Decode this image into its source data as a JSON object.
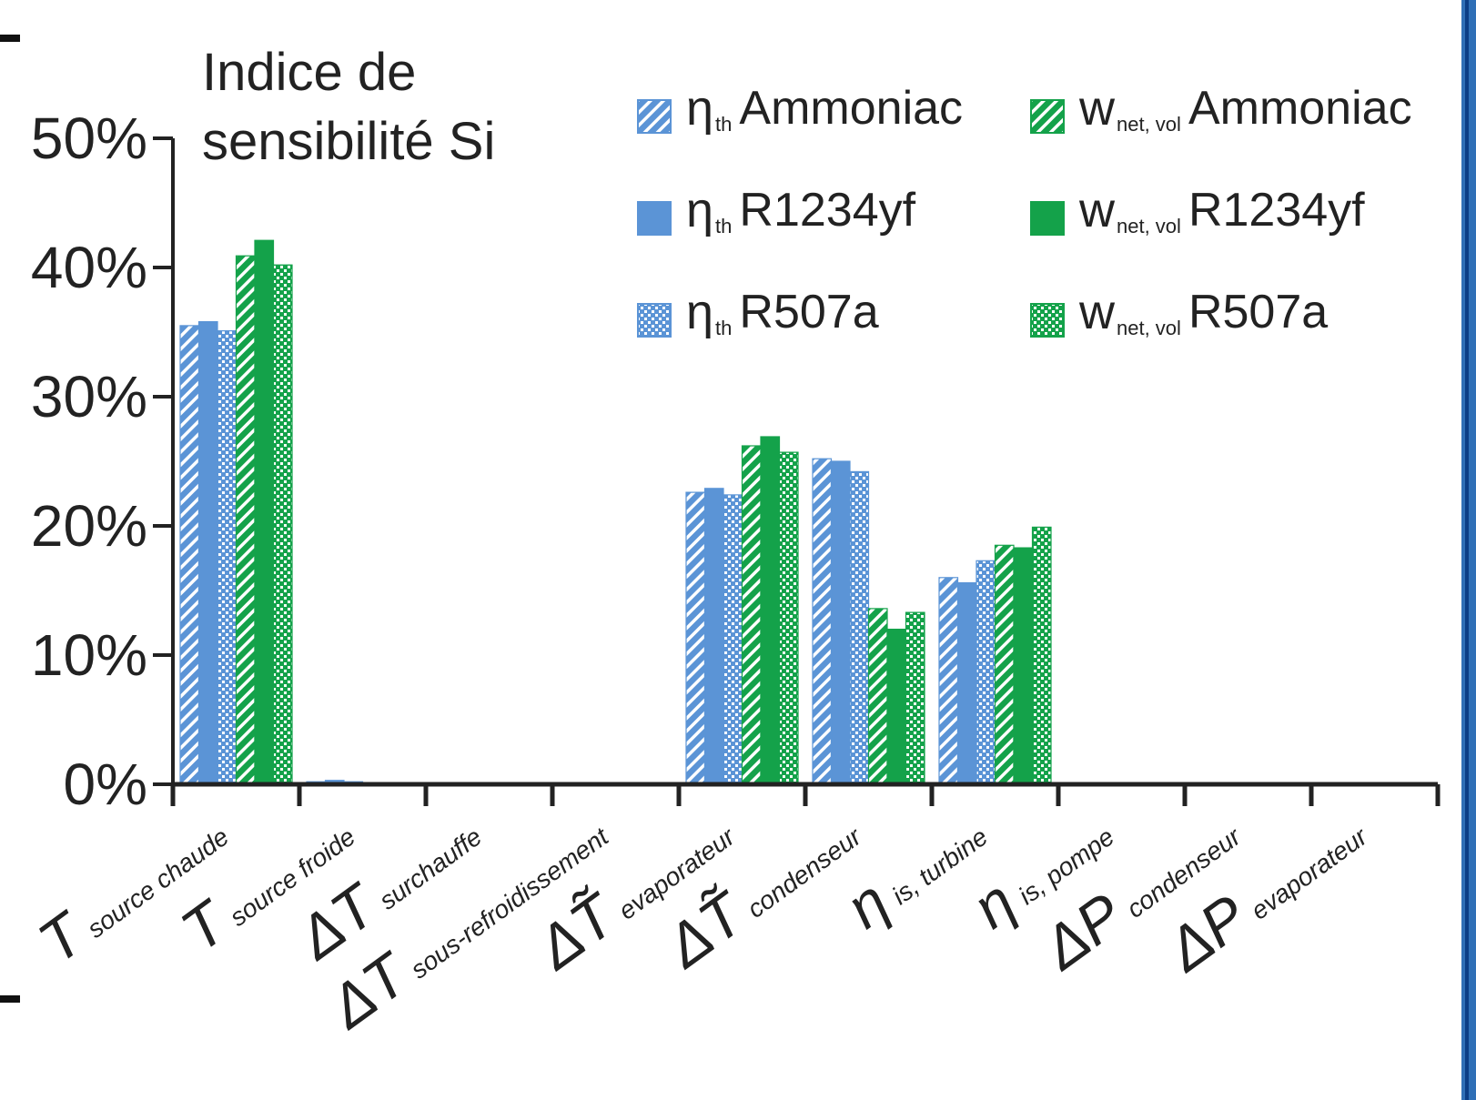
{
  "title": {
    "line1": "Indice de",
    "line2": "sensibilité Si"
  },
  "legend": [
    {
      "symbol": "η",
      "sub": "th",
      "name": "Ammoniac",
      "series": 0
    },
    {
      "symbol": "w",
      "sub": "net, vol",
      "name": "Ammoniac",
      "series": 3
    },
    {
      "symbol": "η",
      "sub": "th",
      "name": "R1234yf",
      "series": 1
    },
    {
      "symbol": "w",
      "sub": "net, vol",
      "name": "R1234yf",
      "series": 4
    },
    {
      "symbol": "η",
      "sub": "th",
      "name": "R507a",
      "series": 2
    },
    {
      "symbol": "w",
      "sub": "net, vol",
      "name": "R507a",
      "series": 5
    }
  ],
  "colors": {
    "blue": "#5b94d6",
    "green": "#14a24a",
    "axis": "#222222",
    "text": "#222222"
  },
  "chart_data": {
    "type": "bar",
    "ylim": [
      0,
      50
    ],
    "yticks": [
      "0%",
      "10%",
      "20%",
      "30%",
      "40%",
      "50%"
    ],
    "categories": [
      {
        "main": "T",
        "sub": "source chaude"
      },
      {
        "main": "T",
        "sub": "source froide"
      },
      {
        "main": "ΔT",
        "sub": "surchauffe"
      },
      {
        "main": "ΔT",
        "sub": "sous-refroidissement"
      },
      {
        "main": "ΔT̃",
        "sub": "evaporateur"
      },
      {
        "main": "ΔT̃",
        "sub": "condenseur"
      },
      {
        "main": "η",
        "sub": "is, turbine"
      },
      {
        "main": "η",
        "sub": "is, pompe"
      },
      {
        "main": "ΔP",
        "sub": "condenseur"
      },
      {
        "main": "ΔP",
        "sub": "evaporateur"
      }
    ],
    "series": [
      {
        "name": "ηth Ammoniac",
        "color": "#5b94d6",
        "pattern": "stripe",
        "values": [
          35.5,
          0.2,
          0,
          0,
          22.6,
          25.2,
          16.0,
          0,
          0,
          0
        ]
      },
      {
        "name": "ηth R1234yf",
        "color": "#5b94d6",
        "pattern": "solid",
        "values": [
          35.8,
          0.3,
          0,
          0,
          22.9,
          25.0,
          15.6,
          0,
          0,
          0
        ]
      },
      {
        "name": "ηth R507a",
        "color": "#5b94d6",
        "pattern": "check",
        "values": [
          35.1,
          0.2,
          0,
          0,
          22.4,
          24.2,
          17.3,
          0,
          0,
          0
        ]
      },
      {
        "name": "wnet, vol Ammoniac",
        "color": "#14a24a",
        "pattern": "stripe",
        "values": [
          40.9,
          0.1,
          0,
          0,
          26.2,
          13.6,
          18.5,
          0,
          0,
          0
        ]
      },
      {
        "name": "wnet, vol R1234yf",
        "color": "#14a24a",
        "pattern": "solid",
        "values": [
          42.1,
          0.1,
          0,
          0,
          26.9,
          12.0,
          18.3,
          0,
          0,
          0
        ]
      },
      {
        "name": "wnet, vol R507a",
        "color": "#14a24a",
        "pattern": "check",
        "values": [
          40.2,
          0.1,
          0,
          0,
          25.7,
          13.3,
          19.9,
          0,
          0,
          0
        ]
      }
    ],
    "grid": false,
    "legend_position": "top-right"
  }
}
